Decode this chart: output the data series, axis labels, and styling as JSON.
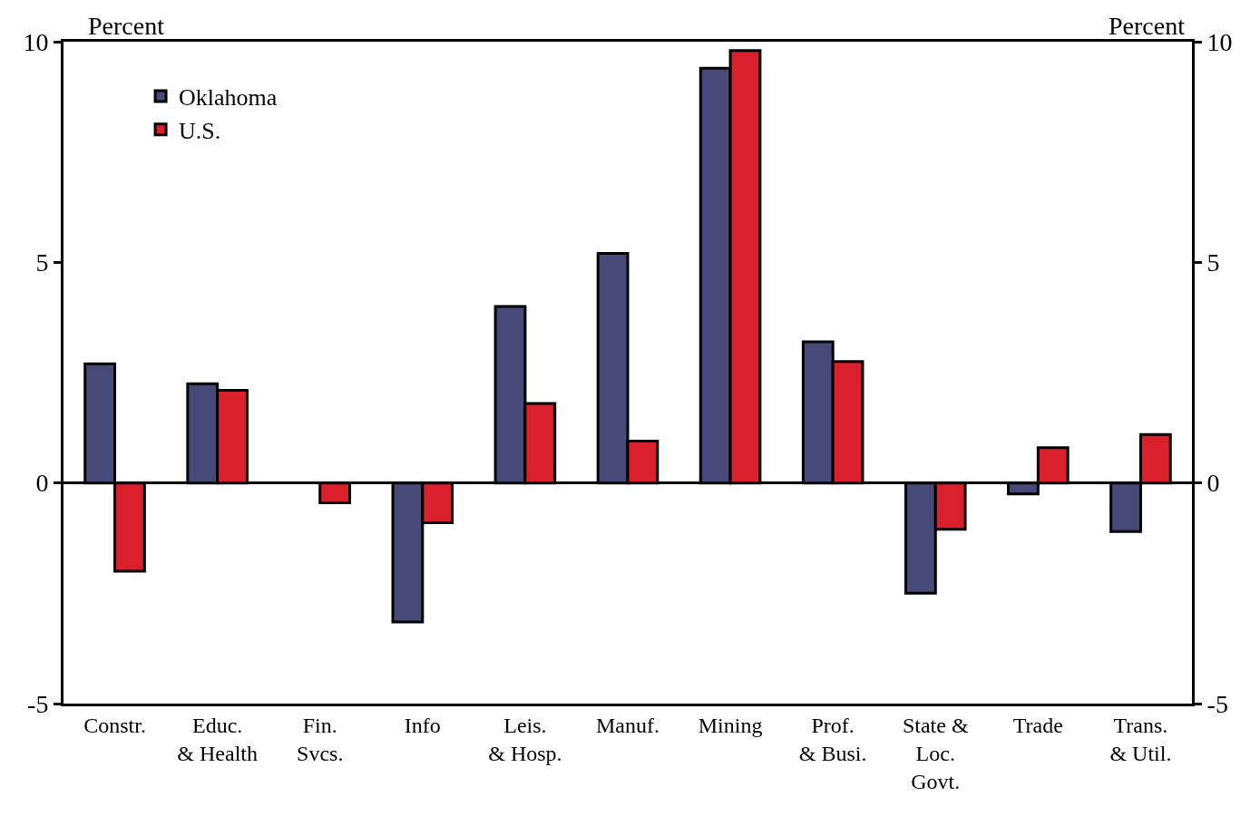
{
  "chart_data": {
    "type": "bar",
    "categories": [
      "Constr.",
      "Educ.\n& Health",
      "Fin.\nSvcs.",
      "Info",
      "Leis.\n& Hosp.",
      "Manuf.",
      "Mining",
      "Prof.\n& Busi.",
      "State &\nLoc.\nGovt.",
      "Trade",
      "Trans.\n& Util."
    ],
    "series": [
      {
        "name": "Oklahoma",
        "color": "#474a78",
        "values": [
          2.7,
          2.25,
          null,
          -3.15,
          4.0,
          5.2,
          9.4,
          3.2,
          -2.5,
          -0.25,
          -1.1
        ]
      },
      {
        "name": "U.S.",
        "color": "#d9202c",
        "values": [
          -2.0,
          2.1,
          -0.45,
          -0.9,
          1.8,
          0.95,
          9.8,
          2.75,
          -1.05,
          0.8,
          1.1
        ]
      }
    ],
    "ylabel": "Percent",
    "y2label": "Percent",
    "ylim": [
      -5,
      10
    ],
    "yticks": [
      -5,
      0,
      5,
      10
    ],
    "y2lim": [
      -5,
      10
    ],
    "y2ticks": [
      -5,
      0,
      5,
      10
    ],
    "legend": "top left"
  }
}
